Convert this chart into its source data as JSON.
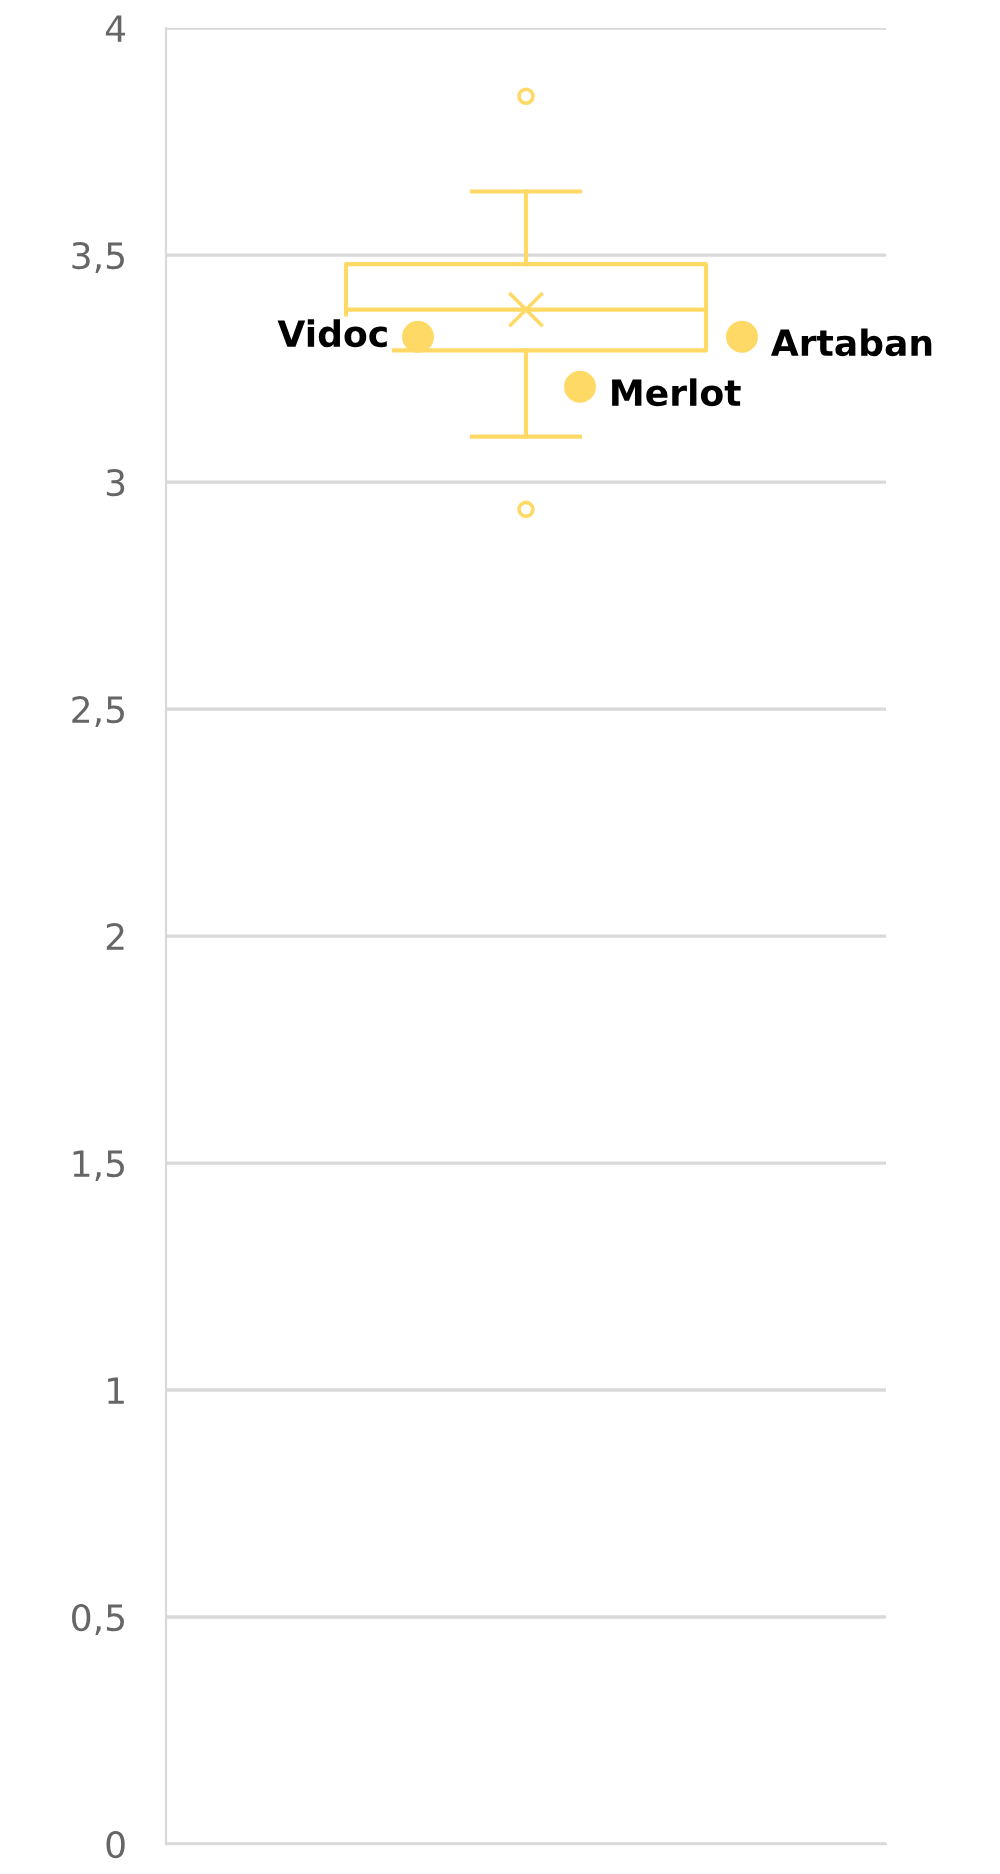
{
  "chart_data": {
    "type": "box",
    "categories": [
      null
    ],
    "boxes": [
      {
        "low": 3.1,
        "q1": 3.29,
        "median": 3.38,
        "q3": 3.48,
        "high": 3.64,
        "mean": 3.38,
        "outliers": [
          3.85,
          2.94
        ]
      }
    ],
    "color": "#ffd966",
    "series": [
      {
        "type": "scatter",
        "name": "Vidoc",
        "values": [
          3.32
        ],
        "color": "#ffd966"
      },
      {
        "type": "scatter",
        "name": "Merlot",
        "values": [
          3.21
        ],
        "color": "#ffd966"
      },
      {
        "type": "scatter",
        "name": "Artaban",
        "values": [
          3.32
        ],
        "color": "#ffd966"
      }
    ],
    "ylim": [
      0,
      4
    ],
    "yticks": [
      0,
      {
        "value": 0.5,
        "label": "0,5"
      },
      1,
      {
        "value": 1.5,
        "label": "1,5"
      },
      2,
      {
        "value": 2.5,
        "label": "2,5"
      },
      3,
      {
        "value": 3.5,
        "label": "3,5"
      },
      4
    ],
    "tick_labels": "y",
    "grid": "y",
    "legend": false,
    "marker": "circle"
  }
}
